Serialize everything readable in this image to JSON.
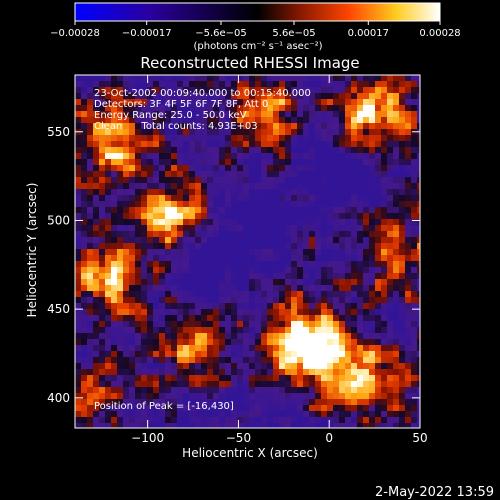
{
  "chart_data": {
    "type": "heatmap",
    "title": "Reconstructed RHESSI Image",
    "xlabel": "Heliocentric X (arcsec)",
    "ylabel": "Heliocentric Y (arcsec)",
    "xlim": [
      -140,
      50
    ],
    "ylim": [
      383,
      582
    ],
    "x_ticks": [
      -100,
      -50,
      0,
      50
    ],
    "y_ticks": [
      400,
      450,
      500,
      550
    ],
    "x_tick_labels": [
      "−100",
      "−50",
      "0",
      "50"
    ],
    "y_tick_labels": [
      "400",
      "450",
      "500",
      "550"
    ],
    "colorbar": {
      "range": [
        -0.00028,
        0.00028
      ],
      "tick_values": [
        -0.00028,
        -0.00017,
        -5.6e-05,
        5.6e-05,
        0.00017,
        0.00028
      ],
      "tick_labels": [
        "−0.00028",
        "−0.00017",
        "−5.6e−05",
        "5.6e−05",
        "0.00017",
        "0.00028"
      ],
      "unit_label": "(photons cm⁻² s⁻¹ asec⁻²)",
      "colors": [
        "#0000ff",
        "#000000",
        "#8a1a00",
        "#ff4500",
        "#ffcc20",
        "#ffffff"
      ]
    },
    "annotations": {
      "time": "23-Oct-2002 00:09:40.000 to 00:15:40.000",
      "detectors": "Detectors: 3F 4F 5F 6F 7F 8F, Att 0",
      "energy": "Energy Range: 25.0 - 50.0 keV",
      "method": "Clean      Total counts: 4.93E+03",
      "peak": "Position of Peak = [-16,430]"
    },
    "peak_position": [
      -16,
      430
    ],
    "bright_regions": [
      {
        "x": -16,
        "y": 430,
        "level": 1.0
      },
      {
        "x": 20,
        "y": 410,
        "level": 0.75
      },
      {
        "x": -120,
        "y": 545,
        "level": 0.75
      },
      {
        "x": 25,
        "y": 560,
        "level": 0.75
      },
      {
        "x": -85,
        "y": 505,
        "level": 0.7
      },
      {
        "x": -120,
        "y": 470,
        "level": 0.7
      },
      {
        "x": -35,
        "y": 560,
        "level": 0.55
      },
      {
        "x": 40,
        "y": 480,
        "level": 0.55
      },
      {
        "x": -75,
        "y": 430,
        "level": 0.55
      },
      {
        "x": -130,
        "y": 400,
        "level": 0.45
      }
    ],
    "dim_regions": [
      {
        "x": -45,
        "y": 500,
        "level": 0.3
      },
      {
        "x": 5,
        "y": 525,
        "level": 0.3
      },
      {
        "x": -70,
        "y": 470,
        "level": 0.35
      }
    ],
    "grid": false,
    "colorbar_position": "top"
  },
  "timestamp": "2-May-2022 13:59"
}
